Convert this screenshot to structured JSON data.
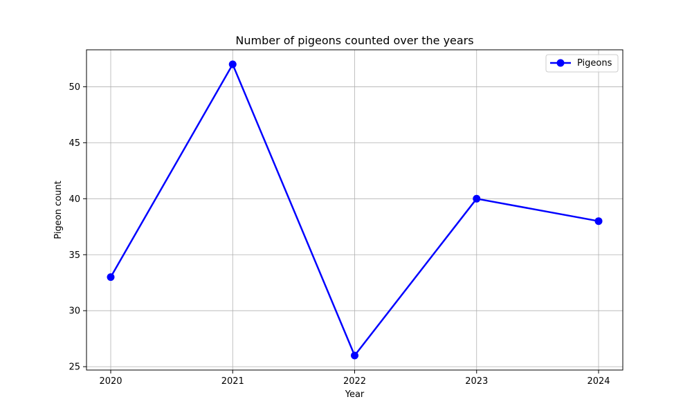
{
  "chart_data": {
    "type": "line",
    "title": "Number of pigeons counted over the years",
    "xlabel": "Year",
    "ylabel": "Pigeon count",
    "categories": [
      "2020",
      "2021",
      "2022",
      "2023",
      "2024"
    ],
    "series": [
      {
        "name": "Pigeons",
        "values": [
          33,
          52,
          26,
          40,
          38
        ],
        "color": "#0000ff"
      }
    ],
    "ylim": [
      24.7,
      53.3
    ],
    "yticks": [
      25,
      30,
      35,
      40,
      45,
      50
    ],
    "grid": true,
    "legend_position": "top-right",
    "marker": "circle"
  }
}
